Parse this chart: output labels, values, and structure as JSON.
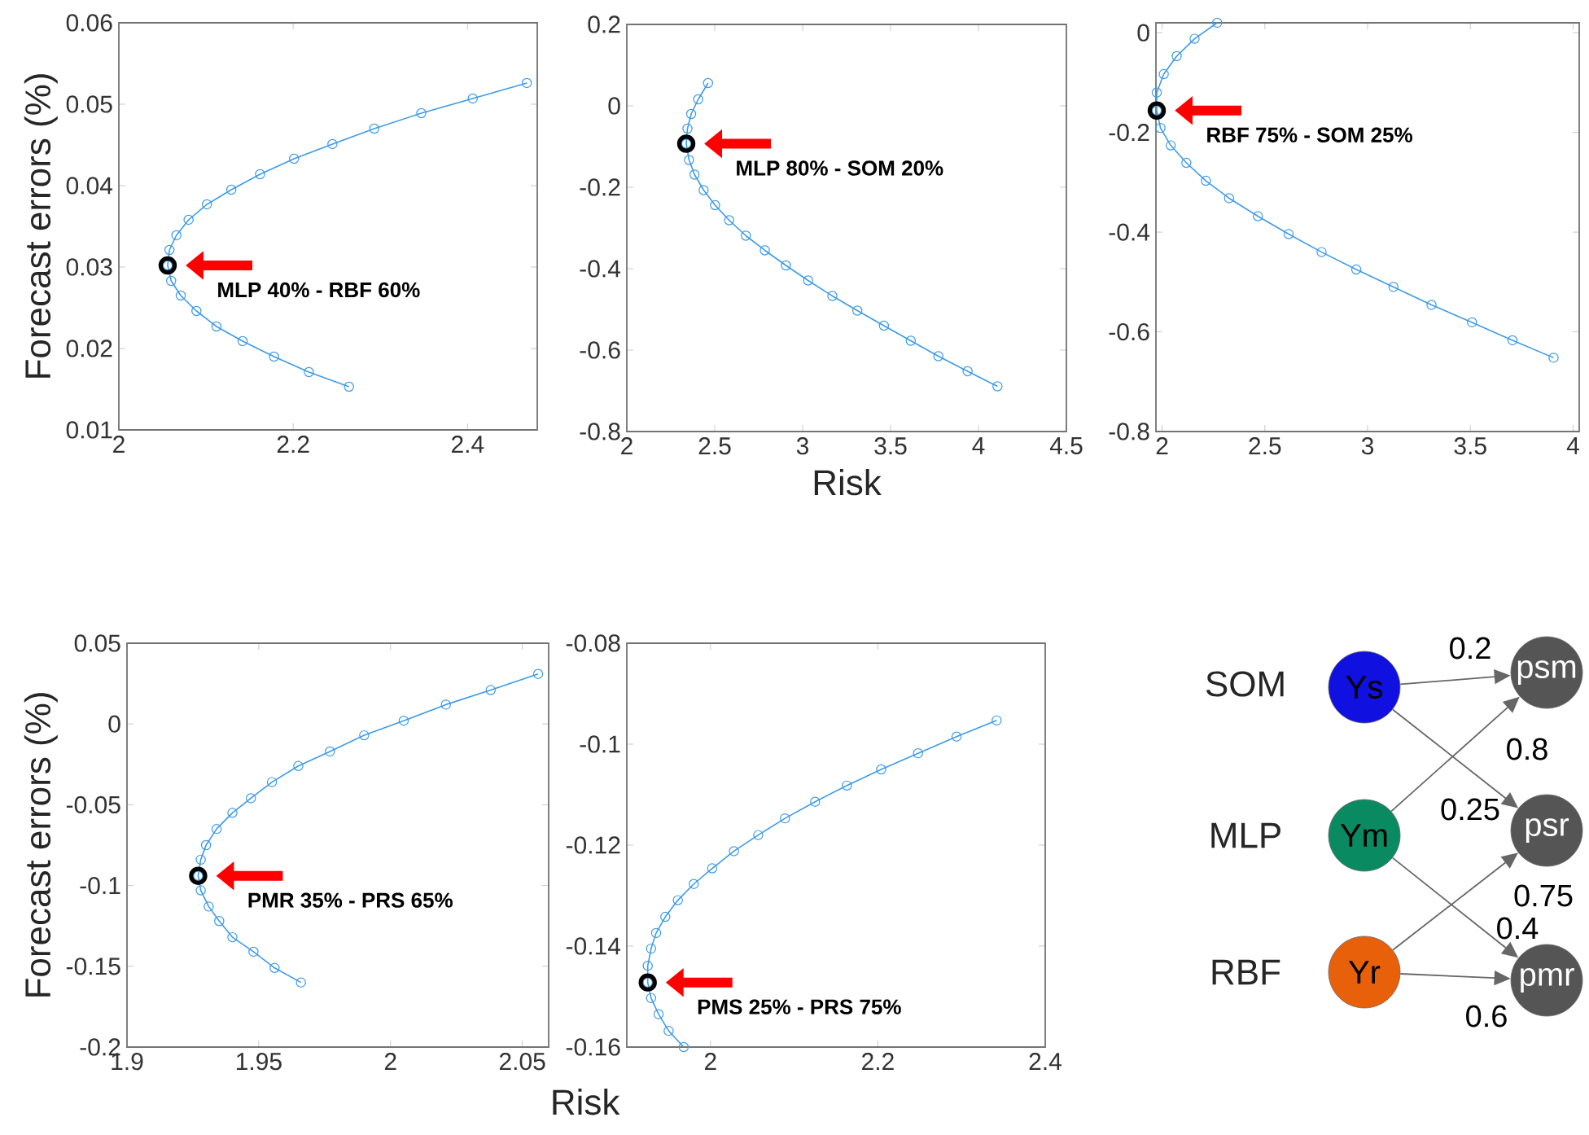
{
  "chart_data": [
    {
      "type": "line",
      "ylabel": "Forecast errors (%)",
      "marker": "circle",
      "x": [
        2.264,
        2.218,
        2.178,
        2.142,
        2.112,
        2.089,
        2.071,
        2.06,
        2.056,
        2.058,
        2.066,
        2.08,
        2.101,
        2.129,
        2.162,
        2.201,
        2.245,
        2.293,
        2.347,
        2.406,
        2.468
      ],
      "series": [
        {
          "color": "#3d9be9",
          "values": [
            0.0153,
            0.0171,
            0.019,
            0.0209,
            0.0227,
            0.0246,
            0.0265,
            0.0283,
            0.0302,
            0.0321,
            0.0339,
            0.0358,
            0.0377,
            0.0395,
            0.0414,
            0.0433,
            0.0451,
            0.047,
            0.0489,
            0.0507,
            0.0526
          ]
        },
        {
          "type": "scatter",
          "color": "#000000",
          "x": [
            2.056
          ],
          "values": [
            0.0302
          ]
        }
      ],
      "annotations": [
        {
          "text": "**MLP 40% - RBF 60%**",
          "x": 2.056,
          "y": 0.0302
        }
      ],
      "xlim": [
        2,
        2.48
      ],
      "ylim": [
        0.01,
        0.06
      ],
      "xticks": [
        2,
        2.2,
        2.4
      ],
      "yticks": [
        0.01,
        0.02,
        0.03,
        0.04,
        0.05,
        0.06
      ]
    },
    {
      "type": "line",
      "xlabel": "Risk",
      "marker": "circle",
      "x": [
        2.462,
        2.406,
        2.366,
        2.345,
        2.338,
        2.354,
        2.385,
        2.437,
        2.502,
        2.582,
        2.677,
        2.785,
        2.905,
        3.031,
        3.169,
        3.311,
        3.462,
        3.615,
        3.772,
        3.938,
        4.108
      ],
      "series": [
        {
          "color": "#3d9be9",
          "values": [
            0.056,
            0.016,
            -0.02,
            -0.056,
            -0.093,
            -0.133,
            -0.169,
            -0.207,
            -0.244,
            -0.281,
            -0.319,
            -0.355,
            -0.392,
            -0.429,
            -0.467,
            -0.503,
            -0.54,
            -0.577,
            -0.615,
            -0.652,
            -0.689
          ]
        },
        {
          "type": "scatter",
          "color": "#000000",
          "x": [
            2.338
          ],
          "values": [
            -0.093
          ]
        }
      ],
      "annotations": [
        {
          "text": "**MLP 80% - SOM 20%**",
          "x": 2.338,
          "y": -0.093
        }
      ],
      "xlim": [
        2,
        4.5
      ],
      "ylim": [
        -0.8,
        0.2
      ],
      "xticks": [
        2,
        2.5,
        3,
        3.5,
        4,
        4.5
      ],
      "yticks": [
        -0.8,
        -0.6,
        -0.4,
        -0.2,
        0,
        0.2
      ]
    },
    {
      "type": "line",
      "marker": "circle",
      "x": [
        2.268,
        2.158,
        2.071,
        2.008,
        1.974,
        1.974,
        1.992,
        2.042,
        2.118,
        2.213,
        2.326,
        2.466,
        2.616,
        2.776,
        2.945,
        3.126,
        3.311,
        3.508,
        3.705,
        3.905
      ],
      "series": [
        {
          "color": "#3d9be9",
          "values": [
            0.02,
            -0.012,
            -0.047,
            -0.083,
            -0.12,
            -0.156,
            -0.191,
            -0.226,
            -0.261,
            -0.297,
            -0.332,
            -0.368,
            -0.404,
            -0.44,
            -0.475,
            -0.51,
            -0.546,
            -0.581,
            -0.617,
            -0.652
          ]
        },
        {
          "type": "scatter",
          "color": "#000000",
          "x": [
            1.974
          ],
          "values": [
            -0.156
          ]
        }
      ],
      "annotations": [
        {
          "text": "**RBF 75% - SOM 25%**",
          "x": 1.974,
          "y": -0.156
        }
      ],
      "xlim": [
        1.97,
        4.03
      ],
      "ylim": [
        -0.8,
        0.02
      ],
      "xticks": [
        2,
        2.5,
        3,
        3.5,
        4
      ],
      "yticks": [
        -0.8,
        -0.6,
        -0.4,
        -0.2,
        0
      ]
    },
    {
      "type": "line",
      "ylabel": "Forecast errors (%)",
      "marker": "circle",
      "x": [
        1.966,
        1.956,
        1.948,
        1.94,
        1.935,
        1.931,
        1.928,
        1.927,
        1.928,
        1.93,
        1.934,
        1.94,
        1.947,
        1.955,
        1.965,
        1.977,
        1.99,
        2.005,
        2.021,
        2.038,
        2.056
      ],
      "series": [
        {
          "color": "#3d9be9",
          "values": [
            -0.16,
            -0.151,
            -0.141,
            -0.132,
            -0.122,
            -0.113,
            -0.103,
            -0.094,
            -0.084,
            -0.075,
            -0.065,
            -0.055,
            -0.046,
            -0.036,
            -0.026,
            -0.017,
            -0.007,
            0.002,
            0.012,
            0.021,
            0.031
          ]
        },
        {
          "type": "scatter",
          "color": "#000000",
          "x": [
            1.927
          ],
          "values": [
            -0.094
          ]
        }
      ],
      "annotations": [
        {
          "text": "**PMR 35% - PRS 65%**",
          "x": 1.927,
          "y": -0.094
        }
      ],
      "xlim": [
        1.9,
        2.06
      ],
      "ylim": [
        -0.2,
        0.05
      ],
      "xticks": [
        1.9,
        1.95,
        2,
        2.05
      ],
      "yticks": [
        -0.2,
        -0.15,
        -0.1,
        -0.05,
        0,
        0.05
      ]
    },
    {
      "type": "line",
      "xlabel": "Risk",
      "marker": "circle",
      "x": [
        1.968,
        1.95,
        1.938,
        1.929,
        1.925,
        1.925,
        1.929,
        1.935,
        1.946,
        1.961,
        1.98,
        2.002,
        2.028,
        2.057,
        2.089,
        2.125,
        2.163,
        2.204,
        2.248,
        2.294,
        2.342
      ],
      "series": [
        {
          "color": "#3d9be9",
          "values": [
            -0.16,
            -0.1568,
            -0.1535,
            -0.1503,
            -0.1472,
            -0.1439,
            -0.1405,
            -0.1374,
            -0.1342,
            -0.1309,
            -0.1277,
            -0.1246,
            -0.1212,
            -0.118,
            -0.1147,
            -0.1114,
            -0.1082,
            -0.105,
            -0.1018,
            -0.0985,
            -0.0953
          ]
        },
        {
          "type": "scatter",
          "color": "#000000",
          "x": [
            1.925
          ],
          "values": [
            -0.1472
          ]
        }
      ],
      "annotations": [
        {
          "text": "**PMS 25% - PRS 75%**",
          "x": 1.925,
          "y": -0.1472
        }
      ],
      "xlim": [
        1.9,
        2.4
      ],
      "ylim": [
        -0.16,
        -0.08
      ],
      "xticks": [
        2,
        2.2,
        2.4
      ],
      "yticks": [
        -0.16,
        -0.14,
        -0.12,
        -0.1,
        -0.08
      ]
    },
    {
      "type": "other",
      "annotations": [
        "SOM",
        "MLP",
        "RBF",
        "Ys",
        "Ym",
        "Yr",
        "psm",
        "psr",
        "pmr",
        "0.2",
        "0.8",
        "0.25",
        "0.75",
        "0.4",
        "0.6"
      ]
    }
  ]
}
